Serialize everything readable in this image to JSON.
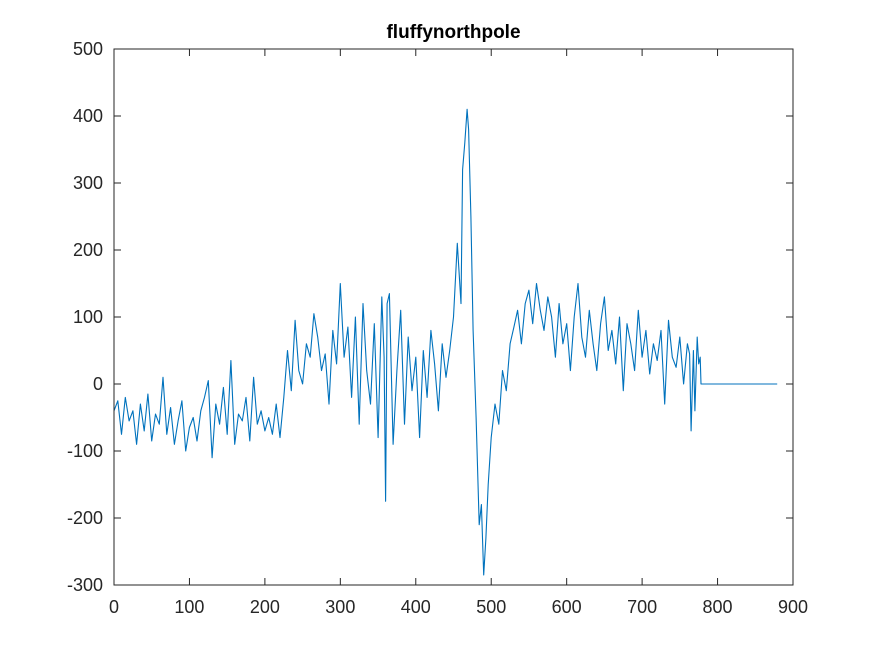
{
  "chart_data": {
    "type": "line",
    "title": "fluffynorthpole",
    "xlabel": "",
    "ylabel": "",
    "xlim": [
      0,
      900
    ],
    "ylim": [
      -300,
      500
    ],
    "xticks": [
      0,
      100,
      200,
      300,
      400,
      500,
      600,
      700,
      800,
      900
    ],
    "xtick_labels": [
      "0",
      "100",
      "200",
      "300",
      "400",
      "500",
      "600",
      "700",
      "800",
      "900"
    ],
    "yticks": [
      -300,
      -200,
      -100,
      0,
      100,
      200,
      300,
      400,
      500
    ],
    "ytick_labels": [
      "-300",
      "-200",
      "-100",
      "0",
      "100",
      "200",
      "300",
      "400",
      "500"
    ],
    "grid": false,
    "line_color": "#0072BD",
    "series": [
      {
        "x": [
          0,
          5,
          10,
          15,
          20,
          25,
          30,
          35,
          40,
          45,
          50,
          55,
          60,
          65,
          70,
          75,
          80,
          85,
          90,
          95,
          100,
          105,
          110,
          115,
          120,
          125,
          130,
          135,
          140,
          145,
          150,
          155,
          160,
          165,
          170,
          175,
          180,
          185,
          190,
          195,
          200,
          205,
          210,
          215,
          220,
          225,
          230,
          235,
          240,
          245,
          250,
          255,
          260,
          265,
          270,
          275,
          280,
          285,
          290,
          295,
          300,
          305,
          310,
          315,
          320,
          325,
          330,
          335,
          340,
          345,
          350,
          355,
          358,
          360,
          362,
          365,
          370,
          375,
          380,
          385,
          390,
          395,
          400,
          405,
          410,
          415,
          420,
          425,
          430,
          435,
          440,
          445,
          450,
          455,
          460,
          462,
          465,
          468,
          470,
          473,
          476,
          480,
          484,
          487,
          490,
          493,
          496,
          500,
          505,
          510,
          515,
          520,
          525,
          530,
          535,
          540,
          545,
          550,
          555,
          560,
          565,
          570,
          575,
          580,
          585,
          590,
          595,
          600,
          605,
          610,
          615,
          620,
          625,
          630,
          635,
          640,
          645,
          650,
          655,
          660,
          665,
          670,
          675,
          680,
          685,
          690,
          695,
          700,
          705,
          710,
          715,
          720,
          725,
          730,
          735,
          740,
          745,
          750,
          755,
          760,
          763,
          765,
          768,
          770,
          773,
          775,
          777,
          778,
          800,
          825,
          850,
          879
        ],
        "y": [
          -40,
          -25,
          -75,
          -20,
          -55,
          -40,
          -90,
          -30,
          -70,
          -15,
          -85,
          -45,
          -60,
          10,
          -75,
          -35,
          -90,
          -55,
          -25,
          -100,
          -65,
          -50,
          -85,
          -40,
          -20,
          5,
          -110,
          -30,
          -60,
          -5,
          -75,
          35,
          -90,
          -45,
          -55,
          -20,
          -85,
          10,
          -60,
          -40,
          -70,
          -50,
          -75,
          -30,
          -80,
          -20,
          50,
          -10,
          95,
          20,
          0,
          60,
          40,
          105,
          70,
          20,
          45,
          -30,
          80,
          30,
          150,
          40,
          85,
          -20,
          100,
          -60,
          120,
          20,
          -30,
          90,
          -80,
          130,
          40,
          -175,
          120,
          135,
          -90,
          20,
          110,
          -60,
          70,
          -10,
          40,
          -80,
          50,
          -20,
          80,
          30,
          -40,
          60,
          10,
          50,
          100,
          210,
          120,
          320,
          360,
          410,
          380,
          250,
          80,
          -50,
          -210,
          -180,
          -285,
          -230,
          -150,
          -80,
          -30,
          -60,
          20,
          -10,
          60,
          85,
          110,
          60,
          120,
          140,
          90,
          150,
          110,
          80,
          130,
          100,
          40,
          120,
          60,
          90,
          20,
          100,
          150,
          70,
          40,
          110,
          60,
          20,
          90,
          130,
          50,
          80,
          30,
          100,
          -10,
          90,
          60,
          20,
          110,
          40,
          80,
          15,
          60,
          35,
          80,
          -30,
          95,
          40,
          25,
          70,
          0,
          60,
          45,
          -70,
          50,
          -40,
          70,
          30,
          40,
          0,
          0,
          0,
          0,
          0
        ]
      }
    ]
  }
}
